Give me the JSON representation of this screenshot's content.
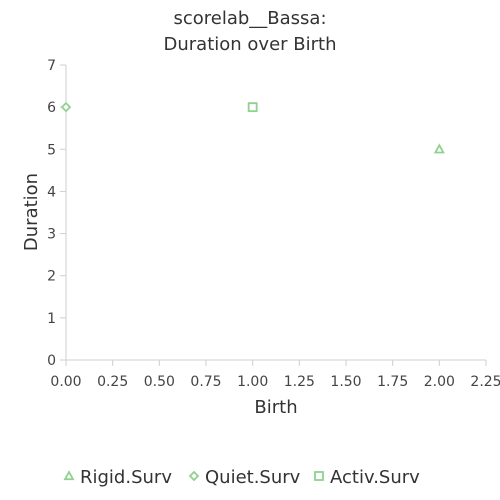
{
  "chart_data": {
    "type": "scatter",
    "title_lines": [
      "scorelab__Bassa:",
      "Duration over Birth"
    ],
    "xlabel": "Birth",
    "ylabel": "Duration",
    "xlim": [
      0,
      2.25
    ],
    "ylim": [
      0,
      7
    ],
    "x_ticks": [
      "0.00",
      "0.25",
      "0.50",
      "0.75",
      "1.00",
      "1.25",
      "1.50",
      "1.75",
      "2.00",
      "2.25"
    ],
    "y_ticks": [
      "0",
      "1",
      "2",
      "3",
      "4",
      "5",
      "6",
      "7"
    ],
    "grid": false,
    "legend_position": "bottom",
    "series": [
      {
        "name": "Rigid.Surv",
        "marker": "triangle",
        "color": "#8fd18f",
        "points": [
          {
            "x": 2.0,
            "y": 5
          }
        ]
      },
      {
        "name": "Quiet.Surv",
        "marker": "diamond",
        "color": "#8fd18f",
        "points": [
          {
            "x": 0.0,
            "y": 6
          }
        ]
      },
      {
        "name": "Activ.Surv",
        "marker": "square",
        "color": "#8fd18f",
        "points": [
          {
            "x": 1.0,
            "y": 6
          }
        ]
      }
    ]
  }
}
